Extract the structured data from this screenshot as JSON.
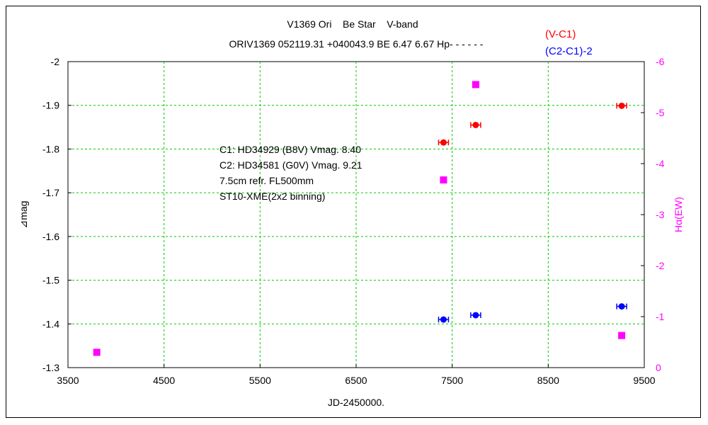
{
  "chart_data": {
    "type": "scatter",
    "title": "V1369 Ori    Be Star    V-band",
    "subtitle": "ORIV1369 052119.31 +040043.9 BE 6.47 6.67 Hp- - - - - -",
    "xlabel": "JD-2450000.",
    "ylabel": "⊿mag",
    "y2label": "Hα(EW)",
    "xlim": [
      3500,
      9500
    ],
    "ylim": [
      -1.3,
      -2.0
    ],
    "y2lim": [
      0,
      -6
    ],
    "x_ticks": [
      3500,
      4500,
      5500,
      6500,
      7500,
      8500,
      9500
    ],
    "y_ticks": [
      -2,
      -1.9,
      -1.8,
      -1.7,
      -1.6,
      -1.5,
      -1.4,
      -1.3
    ],
    "y2_ticks": [
      -6,
      -5,
      -4,
      -3,
      -2,
      -1,
      0
    ],
    "grid": true,
    "legend_placement": "top-right",
    "series": [
      {
        "name": "(V-C1)",
        "color": "#ff0000",
        "axis": "left",
        "marker": "circle",
        "points": [
          {
            "x": 7410,
            "y": -1.815
          },
          {
            "x": 7745,
            "y": -1.855
          },
          {
            "x": 9265,
            "y": -1.899
          }
        ]
      },
      {
        "name": "(C2-C1)-2",
        "color": "#0000ff",
        "axis": "left",
        "marker": "circle",
        "points": [
          {
            "x": 7410,
            "y": -1.41
          },
          {
            "x": 7745,
            "y": -1.42
          },
          {
            "x": 9265,
            "y": -1.44
          }
        ]
      },
      {
        "name": "",
        "color": "#ff00ff",
        "axis": "right",
        "marker": "square",
        "points": [
          {
            "x": 3800,
            "y": -0.3
          },
          {
            "x": 7410,
            "y": -3.68
          },
          {
            "x": 7745,
            "y": -5.55
          },
          {
            "x": 9265,
            "y": -0.63
          }
        ]
      }
    ],
    "annotations": [
      "C1: HD34929 (B8V) Vmag. 8.40",
      "C2: HD34581 (G0V) Vmag. 9.21",
      "7.5cm refr. FL500mm",
      "ST10-XME(2x2 binning)"
    ]
  }
}
